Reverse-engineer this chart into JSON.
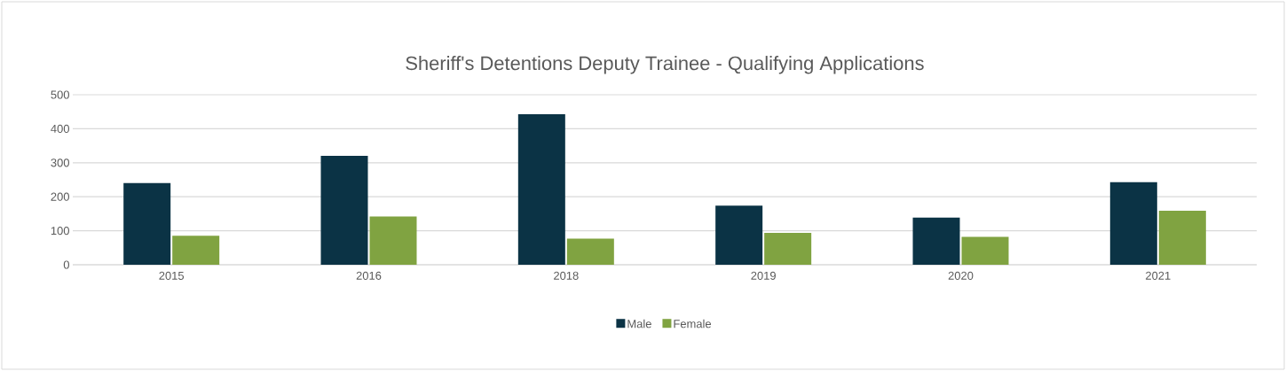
{
  "chart_data": {
    "type": "bar",
    "title": "Sheriff's Detentions Deputy Trainee - Qualifying Applications",
    "categories": [
      "2015",
      "2016",
      "2018",
      "2019",
      "2020",
      "2021"
    ],
    "series": [
      {
        "name": "Male",
        "color": "#0b3345",
        "values": [
          240,
          320,
          443,
          174,
          139,
          243
        ]
      },
      {
        "name": "Female",
        "color": "#80a341",
        "values": [
          85,
          142,
          77,
          94,
          82,
          159
        ]
      }
    ],
    "ylim": [
      0,
      500
    ],
    "yticks": [
      0,
      100,
      200,
      300,
      400,
      500
    ],
    "grid": "y",
    "legend": "bottom"
  }
}
